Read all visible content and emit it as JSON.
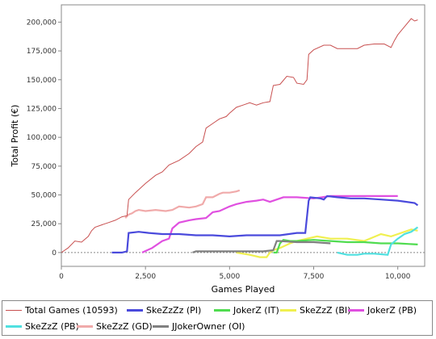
{
  "chart_data": {
    "type": "line",
    "title": "",
    "xlabel": "Games Played",
    "ylabel": "Total Profit (€)",
    "xlim": [
      0,
      10800
    ],
    "ylim": [
      -12000,
      215000
    ],
    "xticks": [
      0,
      2500,
      5000,
      7500,
      10000
    ],
    "xtick_labels": [
      "0",
      "2,500",
      "5,000",
      "7,500",
      "10,000"
    ],
    "yticks": [
      0,
      25000,
      50000,
      75000,
      100000,
      125000,
      150000,
      175000,
      200000
    ],
    "ytick_labels": [
      "0",
      "25,000",
      "50,000",
      "75,000",
      "100,000",
      "125,000",
      "150,000",
      "175,000",
      "200,000"
    ],
    "grid": false,
    "zero_line": true,
    "legend_position": "bottom",
    "series": [
      {
        "name": "Total Games (10593)",
        "color": "#c85050",
        "x": [
          0,
          200,
          400,
          600,
          800,
          900,
          1000,
          1200,
          1400,
          1600,
          1800,
          1950,
          2000,
          2200,
          2500,
          2800,
          3000,
          3200,
          3500,
          3800,
          4000,
          4200,
          4300,
          4500,
          4700,
          4900,
          5000,
          5200,
          5400,
          5600,
          5800,
          6000,
          6200,
          6300,
          6500,
          6700,
          6900,
          7000,
          7200,
          7300,
          7350,
          7500,
          7800,
          8000,
          8200,
          8500,
          8800,
          9000,
          9300,
          9600,
          9800,
          9900,
          10000,
          10200,
          10400,
          10500,
          10593
        ],
        "y": [
          0,
          4000,
          10000,
          9000,
          14000,
          19000,
          22000,
          24000,
          26000,
          28000,
          31000,
          32000,
          46000,
          52000,
          60000,
          67000,
          70000,
          76000,
          80000,
          86000,
          92000,
          96000,
          108000,
          112000,
          116000,
          118000,
          121000,
          126000,
          128000,
          130000,
          128000,
          130000,
          131000,
          145000,
          146000,
          153000,
          152000,
          147000,
          146000,
          150000,
          172000,
          176000,
          180000,
          180000,
          177000,
          177000,
          177000,
          180000,
          181000,
          181000,
          178000,
          184000,
          189000,
          196000,
          203000,
          201000,
          202000
        ]
      },
      {
        "name": "SkeZzZz (PI)",
        "color": "#4a4adc",
        "x": [
          1500,
          1800,
          1950,
          2000,
          2300,
          2600,
          3000,
          3500,
          4000,
          4500,
          5000,
          5500,
          6000,
          6500,
          7000,
          7250,
          7350,
          7400,
          7700,
          7800,
          7900,
          8200,
          8600,
          9000,
          9500,
          10000,
          10500,
          10593
        ],
        "y": [
          0,
          0,
          1000,
          17000,
          18000,
          17000,
          16000,
          16000,
          15000,
          15000,
          14000,
          15000,
          15000,
          15000,
          17000,
          17000,
          45000,
          48000,
          47000,
          46000,
          49000,
          48000,
          47000,
          47000,
          46000,
          45000,
          43000,
          41000
        ]
      },
      {
        "name": "JokerZ (IT)",
        "color": "#50dc50",
        "x": [
          6300,
          6400,
          6500,
          6600,
          6800,
          7000,
          7500,
          8000,
          8500,
          9000,
          9500,
          10000,
          10593
        ],
        "y": [
          0,
          0,
          8000,
          11000,
          10000,
          10000,
          11000,
          10000,
          9000,
          9000,
          8000,
          8000,
          7000
        ]
      },
      {
        "name": "SkeZzZ (BI)",
        "color": "#f0f050",
        "x": [
          5200,
          5600,
          5900,
          6100,
          6200,
          6300,
          6500,
          6800,
          7000,
          7300,
          7600,
          8000,
          8500,
          9000,
          9500,
          9800,
          10000,
          10400,
          10593
        ],
        "y": [
          0,
          -2000,
          -4000,
          -4000,
          0,
          2000,
          4000,
          8000,
          10000,
          12000,
          14000,
          12000,
          12000,
          10000,
          16000,
          14000,
          16000,
          20000,
          19000
        ]
      },
      {
        "name": "JokerZ (PB)",
        "color": "#e050e0",
        "x": [
          2400,
          2700,
          3000,
          3200,
          3300,
          3500,
          3800,
          4000,
          4300,
          4500,
          4700,
          5000,
          5200,
          5500,
          5800,
          6000,
          6200,
          6600,
          7000,
          7500,
          8000,
          8500,
          9000,
          9500,
          10000
        ],
        "y": [
          0,
          4000,
          10000,
          12000,
          21000,
          26000,
          28000,
          29000,
          30000,
          35000,
          36000,
          40000,
          42000,
          44000,
          45000,
          46000,
          44000,
          48000,
          48000,
          47000,
          49000,
          49000,
          49000,
          49000,
          49000
        ]
      },
      {
        "name": "SkeZzZ (PB)",
        "color": "#50e0e0",
        "x": [
          8200,
          8500,
          8800,
          9000,
          9300,
          9700,
          9800,
          10000,
          10200,
          10400,
          10593
        ],
        "y": [
          0,
          -2000,
          -2000,
          -1000,
          -1000,
          -2000,
          7000,
          12000,
          16000,
          18000,
          22000
        ]
      },
      {
        "name": "SkeZzZ (GD)",
        "color": "#f0aaaa",
        "x": [
          1900,
          2000,
          2100,
          2200,
          2300,
          2500,
          2800,
          3100,
          3300,
          3500,
          3800,
          4000,
          4200,
          4300,
          4500,
          4700,
          4800,
          5000,
          5200,
          5300
        ],
        "y": [
          30000,
          33000,
          34000,
          36000,
          37000,
          36000,
          37000,
          36000,
          37000,
          40000,
          39000,
          40000,
          42000,
          48000,
          48000,
          51000,
          52000,
          52000,
          53000,
          54000
        ]
      },
      {
        "name": "JJokerOwner (OI)",
        "color": "#808080",
        "x": [
          3900,
          4000,
          4500,
          5000,
          5500,
          6000,
          6300,
          6400,
          6500,
          7000,
          7500,
          8000
        ],
        "y": [
          0,
          1000,
          1000,
          1000,
          1000,
          1000,
          2000,
          10000,
          10000,
          9000,
          9000,
          8000
        ]
      }
    ]
  }
}
